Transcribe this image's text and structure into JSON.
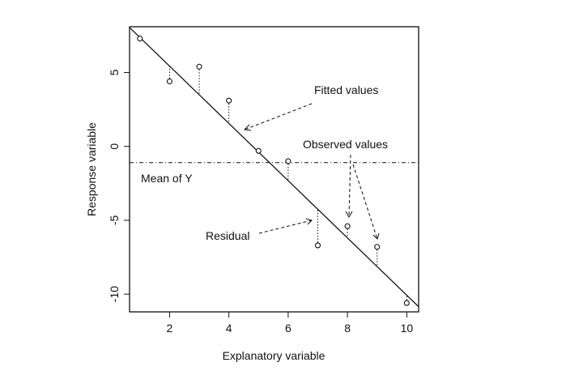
{
  "chart_data": {
    "type": "scatter",
    "xlabel": "Explanatory variable",
    "ylabel": "Response variable",
    "xlim": [
      0.65,
      10.4
    ],
    "ylim": [
      -11.2,
      8.1
    ],
    "x_ticks": [
      2,
      4,
      6,
      8,
      10
    ],
    "y_ticks": [
      5,
      0,
      -5,
      -10
    ],
    "x_tick_labels": [
      "2",
      "4",
      "6",
      "8",
      "10"
    ],
    "y_tick_labels": [
      "5",
      "0",
      "-5",
      "-10"
    ],
    "grid": false,
    "points": [
      {
        "x": 1,
        "y": 7.3
      },
      {
        "x": 2,
        "y": 4.4
      },
      {
        "x": 3,
        "y": 5.4
      },
      {
        "x": 4,
        "y": 3.1
      },
      {
        "x": 5,
        "y": -0.3
      },
      {
        "x": 6,
        "y": -1.0
      },
      {
        "x": 7,
        "y": -6.7
      },
      {
        "x": 8,
        "y": -5.4
      },
      {
        "x": 9,
        "y": -6.8
      },
      {
        "x": 10,
        "y": -10.6
      }
    ],
    "fitted_line": {
      "x1": 0.65,
      "y1": 8.05,
      "x2": 10.4,
      "y2": -10.85
    },
    "mean_y": -1.1,
    "annotations": {
      "fitted": "Fitted values",
      "observed": "Observed values",
      "mean": "Mean of Y",
      "residual": "Residual"
    }
  }
}
